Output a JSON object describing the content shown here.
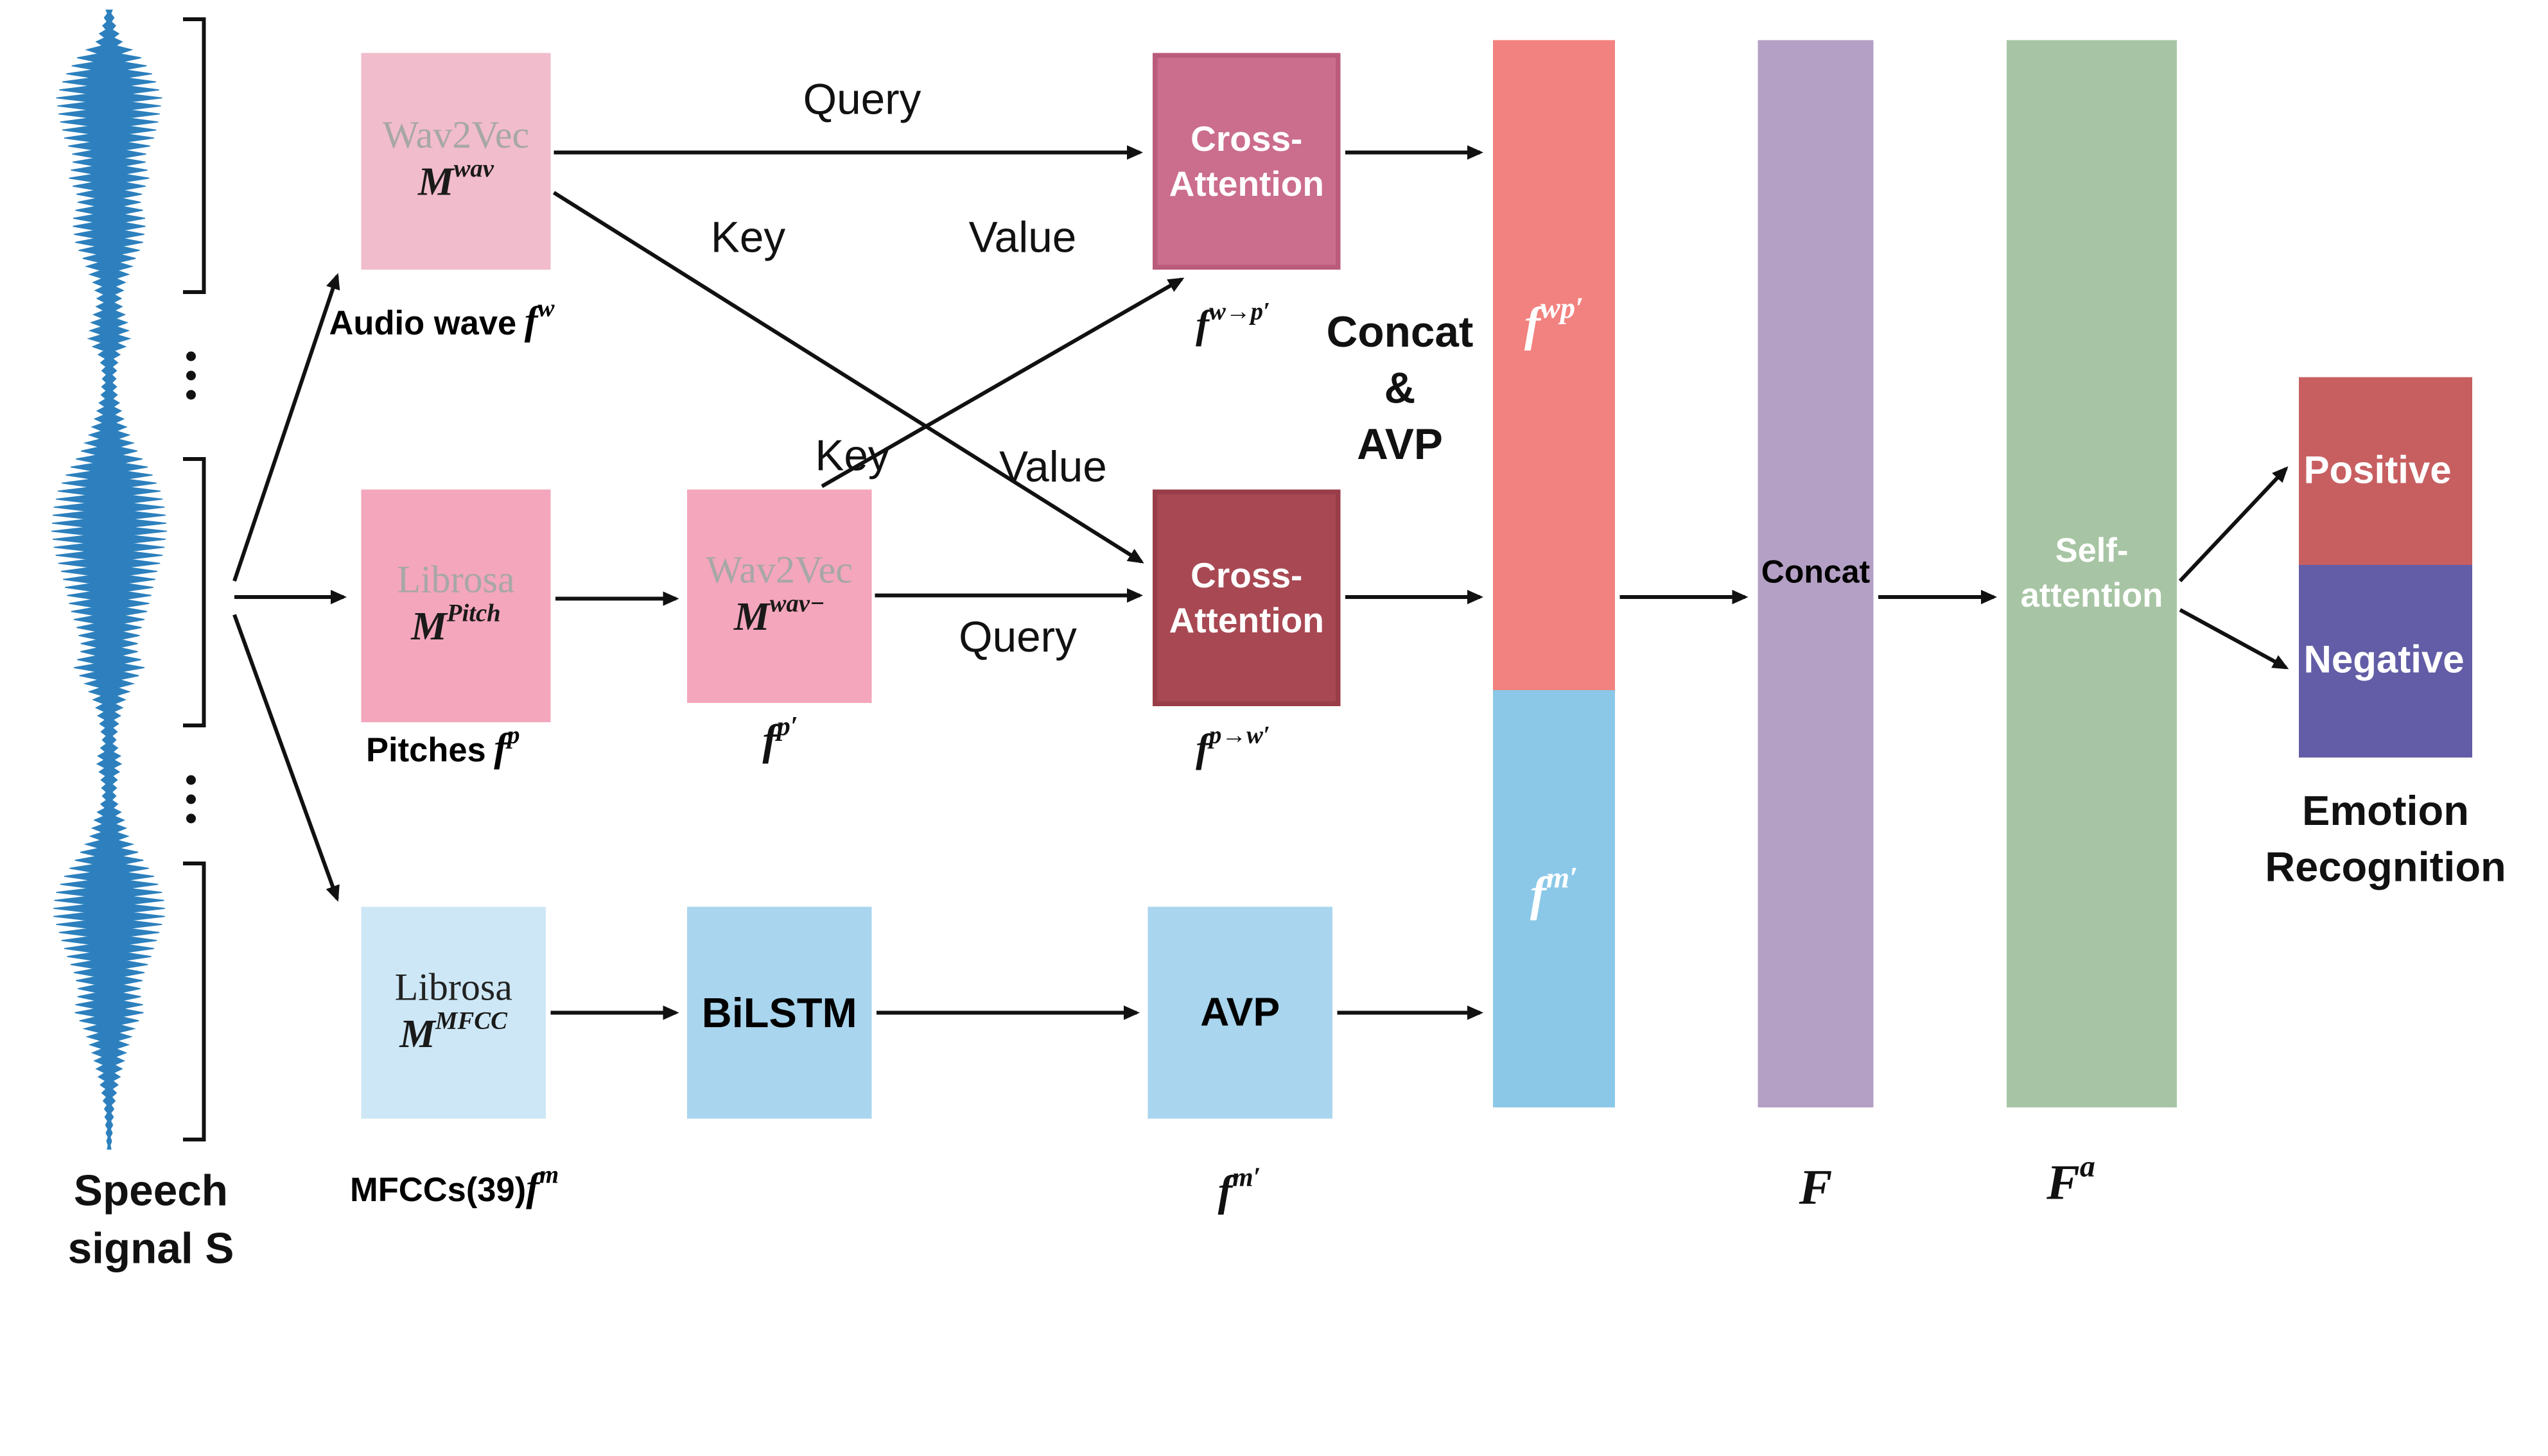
{
  "speech": {
    "line1": "Speech",
    "line2": "signal S"
  },
  "branch_top": {
    "model": {
      "name": "Wav2Vec",
      "m": "M",
      "m_sup": "wav"
    },
    "feature": {
      "text": "Audio wave",
      "f": "f",
      "sup": "w"
    }
  },
  "branch_pitch": {
    "model1": {
      "name": "Librosa",
      "m": "M",
      "m_sup": "Pitch"
    },
    "feature1": {
      "text": "Pitches",
      "f": "f",
      "sup": "p"
    },
    "model2": {
      "name": "Wav2Vec",
      "m": "M",
      "m_sup": "wav−"
    },
    "feature2": {
      "f": "f",
      "sup": "p′"
    }
  },
  "branch_mfcc": {
    "model": {
      "name": "Librosa",
      "m": "M",
      "m_sup": "MFCC"
    },
    "feature": {
      "text": "MFCCs(39)",
      "f": "f",
      "sup": "m"
    },
    "bilstm": "BiLSTM",
    "avp": "AVP",
    "feature_out": {
      "f": "f",
      "sup": "m′"
    }
  },
  "attention": {
    "ca_top": {
      "line1": "Cross-",
      "line2": "Attention"
    },
    "ca_top_out": {
      "f": "f",
      "sup": "w→p′"
    },
    "ca_mid": {
      "line1": "Cross-",
      "line2": "Attention"
    },
    "ca_mid_out": {
      "f": "f",
      "sup": "p→w′"
    },
    "labels": {
      "query_top": "Query",
      "key_top": "Key",
      "value_top": "Value",
      "key_mid": "Key",
      "value_mid": "Value",
      "query_mid": "Query"
    },
    "concat_avp": {
      "line1": "Concat",
      "line2": "&",
      "line3": "AVP"
    }
  },
  "fusion": {
    "bar_top": {
      "f": "f",
      "sup": "wp′"
    },
    "bar_bottom": {
      "f": "f",
      "sup": "m′"
    },
    "concat_bar_label": "Concat",
    "F": {
      "f": "F",
      "sup": ""
    },
    "self_attention": {
      "line1": "Self-",
      "line2": "attention"
    },
    "Fa": {
      "f": "F",
      "sup": "a"
    }
  },
  "output": {
    "positive": "Positive",
    "negative": "Negative",
    "title": {
      "line1": "Emotion",
      "line2": "Recognition"
    }
  },
  "colors": {
    "waveform_blue": "#2d80bd",
    "pink_light": "#f1bccb",
    "pink": "#f3a6bc",
    "blue_light": "#cde7f6",
    "blue": "#a9d5ee",
    "rose": "#cb6d8c",
    "dark_red": "#a84853",
    "salmon": "#f2827f",
    "bar_blue": "#8bc8e8",
    "purple": "#b4a0c4",
    "green": "#a7c5a4",
    "positive_red": "#c75f61",
    "negative_purple": "#625da6"
  }
}
